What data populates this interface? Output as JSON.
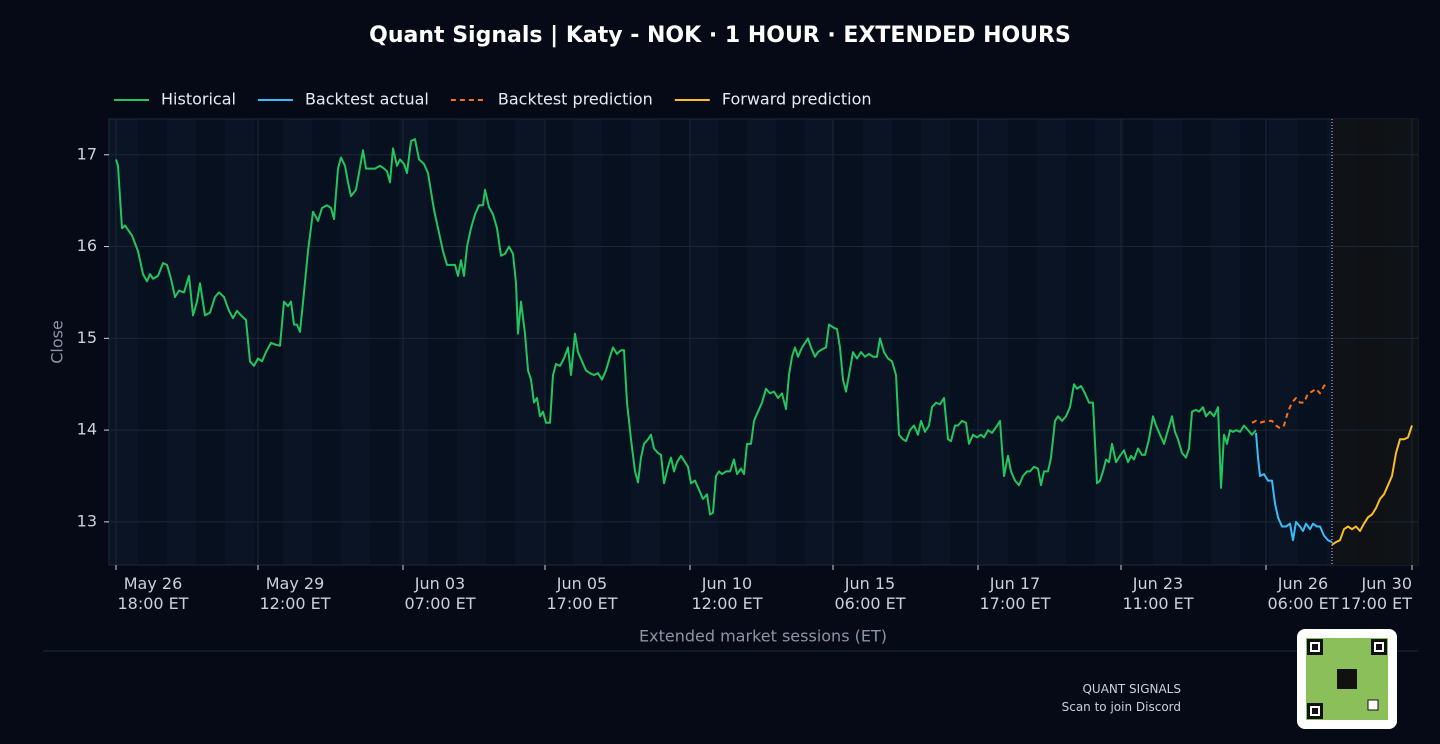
{
  "chart_data": {
    "type": "line",
    "title": "Quant Signals | Katy - NOK  ·  1 HOUR  ·  EXTENDED HOURS",
    "xlabel": "Extended market sessions (ET)",
    "ylabel": "Close",
    "xlim": [
      -7,
      1302
    ],
    "ylim": [
      12.53,
      17.39
    ],
    "yticks": [
      13,
      14,
      15,
      16,
      17
    ],
    "xticks": [
      {
        "value": 0,
        "label": "May 26\n18:00 ET"
      },
      {
        "value": 142,
        "label": "May 29\n12:00 ET"
      },
      {
        "value": 287,
        "label": "Jun 03\n07:00 ET"
      },
      {
        "value": 429,
        "label": "Jun 05\n17:00 ET"
      },
      {
        "value": 574,
        "label": "Jun 10\n12:00 ET"
      },
      {
        "value": 717,
        "label": "Jun 15\n06:00 ET"
      },
      {
        "value": 862,
        "label": "Jun 17\n17:00 ET"
      },
      {
        "value": 1005,
        "label": "Jun 23\n11:00 ET"
      },
      {
        "value": 1150,
        "label": "Jun 26\n06:00 ET"
      },
      {
        "value": 1296,
        "label": "Jun 30\n17:00 ET"
      }
    ],
    "grid": true,
    "legend": "top-left",
    "series": [
      {
        "name": "Historical",
        "color": "#22c55e",
        "dashed": false,
        "x": [
          0,
          2,
          6,
          9,
          16,
          22,
          27,
          31,
          34,
          37,
          42,
          47,
          51,
          55,
          59,
          63,
          68,
          73,
          77,
          81,
          84,
          89,
          94,
          99,
          103,
          108,
          113,
          117,
          121,
          125,
          130,
          134,
          138,
          142,
          146,
          150,
          155,
          160,
          164,
          168,
          172,
          175,
          178,
          181,
          184,
          188,
          192,
          197,
          202,
          206,
          211,
          215,
          218,
          222,
          225,
          229,
          232,
          235,
          240,
          243,
          247,
          250,
          255,
          259,
          264,
          268,
          271,
          274,
          277,
          281,
          284,
          288,
          291,
          295,
          299,
          303,
          308,
          312,
          315,
          318,
          322,
          327,
          331,
          335,
          339,
          342,
          345,
          348,
          351,
          355,
          359,
          363,
          367,
          369,
          373,
          377,
          381,
          385,
          389,
          393,
          397,
          400,
          402,
          405,
          409,
          412,
          415,
          418,
          421,
          424,
          427,
          430,
          434,
          437,
          440,
          444,
          448,
          452,
          455,
          459,
          462,
          466,
          470,
          474,
          478,
          482,
          486,
          490,
          494,
          497,
          501,
          505,
          508,
          511,
          515,
          519,
          522,
          525,
          528,
          532,
          535,
          538,
          542,
          545,
          548,
          552,
          555,
          558,
          561,
          565,
          569,
          572,
          575,
          579,
          583,
          587,
          591,
          594,
          597,
          600,
          603,
          606,
          610,
          614,
          618,
          621,
          625,
          628,
          631,
          635,
          638,
          642,
          646,
          650,
          654,
          658,
          662,
          666,
          670,
          673,
          676,
          679,
          682,
          686,
          689,
          692,
          695,
          699,
          702,
          706,
          710,
          713,
          717,
          721,
          724,
          727,
          730,
          733,
          737,
          741,
          745,
          749,
          753,
          757,
          761,
          764,
          768,
          772,
          776,
          780,
          783,
          787,
          790,
          794,
          798,
          802,
          805,
          809,
          813,
          816,
          820,
          824,
          828,
          832,
          835,
          839,
          842,
          846,
          850,
          853,
          857,
          861,
          865,
          868,
          872,
          876,
          880,
          884,
          888,
          892,
          895,
          899,
          903,
          907,
          911,
          914,
          918,
          922,
          925,
          928,
          932,
          935,
          939,
          942,
          946,
          950,
          954,
          958,
          961,
          965,
          969,
          973,
          977,
          981,
          984,
          987,
          990,
          993,
          996,
          1000,
          1004,
          1008,
          1012,
          1015,
          1018,
          1022,
          1026,
          1029,
          1033,
          1037,
          1040,
          1044,
          1048,
          1052,
          1056,
          1059,
          1062,
          1066,
          1070,
          1073,
          1076,
          1080,
          1083,
          1087,
          1090,
          1094,
          1098,
          1102,
          1105,
          1108,
          1111,
          1114,
          1117,
          1120,
          1124,
          1128,
          1132,
          1136,
          1140
        ],
        "values": [
          16.95,
          16.88,
          16.2,
          16.23,
          16.12,
          15.95,
          15.7,
          15.62,
          15.7,
          15.65,
          15.68,
          15.82,
          15.8,
          15.65,
          15.45,
          15.52,
          15.5,
          15.68,
          15.25,
          15.4,
          15.6,
          15.25,
          15.28,
          15.45,
          15.5,
          15.45,
          15.3,
          15.22,
          15.3,
          15.25,
          15.2,
          14.75,
          14.7,
          14.78,
          14.75,
          14.85,
          14.95,
          14.93,
          14.92,
          15.4,
          15.35,
          15.4,
          15.15,
          15.15,
          15.07,
          15.5,
          15.95,
          16.38,
          16.28,
          16.42,
          16.45,
          16.42,
          16.3,
          16.85,
          16.97,
          16.88,
          16.7,
          16.55,
          16.62,
          16.8,
          17.05,
          16.85,
          16.85,
          16.85,
          16.88,
          16.85,
          16.82,
          16.7,
          17.07,
          16.88,
          16.95,
          16.9,
          16.8,
          17.15,
          17.17,
          16.95,
          16.9,
          16.8,
          16.6,
          16.4,
          16.2,
          15.95,
          15.8,
          15.8,
          15.8,
          15.68,
          15.85,
          15.68,
          16.0,
          16.2,
          16.35,
          16.45,
          16.45,
          16.62,
          16.43,
          16.35,
          16.2,
          15.9,
          15.92,
          16.0,
          15.92,
          15.6,
          15.05,
          15.4,
          15.05,
          14.65,
          14.55,
          14.3,
          14.35,
          14.15,
          14.2,
          14.08,
          14.08,
          14.6,
          14.72,
          14.7,
          14.78,
          14.9,
          14.6,
          15.05,
          14.85,
          14.75,
          14.65,
          14.62,
          14.6,
          14.62,
          14.55,
          14.65,
          14.8,
          14.9,
          14.83,
          14.87,
          14.87,
          14.3,
          13.9,
          13.55,
          13.43,
          13.7,
          13.85,
          13.9,
          13.95,
          13.8,
          13.75,
          13.73,
          13.42,
          13.6,
          13.7,
          13.55,
          13.65,
          13.72,
          13.65,
          13.6,
          13.42,
          13.45,
          13.35,
          13.25,
          13.3,
          13.08,
          13.1,
          13.5,
          13.55,
          13.52,
          13.55,
          13.55,
          13.68,
          13.52,
          13.58,
          13.52,
          13.85,
          13.85,
          14.1,
          14.2,
          14.3,
          14.45,
          14.4,
          14.42,
          14.35,
          14.4,
          14.23,
          14.6,
          14.8,
          14.9,
          14.8,
          14.9,
          14.95,
          15.0,
          14.9,
          14.8,
          14.85,
          14.88,
          14.9,
          15.15,
          15.12,
          15.1,
          14.9,
          14.55,
          14.42,
          14.6,
          14.85,
          14.78,
          14.85,
          14.8,
          14.83,
          14.8,
          14.8,
          15.0,
          14.85,
          14.78,
          14.75,
          14.6,
          13.95,
          13.9,
          13.88,
          14.0,
          14.05,
          13.95,
          14.1,
          13.98,
          14.05,
          14.25,
          14.3,
          14.28,
          14.35,
          13.9,
          13.88,
          14.05,
          14.05,
          14.1,
          14.08,
          13.85,
          13.95,
          13.92,
          13.95,
          13.92,
          14.0,
          13.97,
          14.03,
          14.1,
          13.5,
          13.72,
          13.55,
          13.45,
          13.4,
          13.5,
          13.55,
          13.55,
          13.6,
          13.58,
          13.4,
          13.55,
          13.55,
          13.7,
          14.1,
          14.15,
          14.1,
          14.15,
          14.25,
          14.5,
          14.45,
          14.48,
          14.4,
          14.3,
          14.3,
          13.42,
          13.45,
          13.55,
          13.68,
          13.65,
          13.85,
          13.65,
          13.72,
          13.78,
          13.65,
          13.72,
          13.68,
          13.8,
          13.73,
          13.73,
          13.9,
          14.15,
          14.05,
          13.95,
          13.85,
          14.0,
          14.15,
          13.98,
          13.9,
          13.75,
          13.7,
          13.8,
          14.2,
          14.22,
          14.2,
          14.25,
          14.15,
          14.2,
          14.15,
          14.25,
          13.37,
          13.95,
          13.85,
          14.0,
          13.98,
          14.0,
          13.98,
          14.05,
          14.0,
          13.95,
          14.0
        ]
      },
      {
        "name": "Backtest actual",
        "color": "#38bdf8",
        "dashed": false,
        "x": [
          1140,
          1142,
          1144,
          1148,
          1152,
          1156,
          1159,
          1162,
          1166,
          1170,
          1174,
          1177,
          1180,
          1184,
          1187,
          1190,
          1194,
          1197,
          1201,
          1204,
          1208,
          1212,
          1216
        ],
        "values": [
          13.97,
          13.7,
          13.5,
          13.52,
          13.45,
          13.45,
          13.2,
          13.05,
          12.95,
          12.95,
          12.98,
          12.8,
          13.0,
          12.95,
          12.9,
          12.98,
          12.92,
          12.98,
          12.95,
          12.95,
          12.85,
          12.8,
          12.78
        ]
      },
      {
        "name": "Backtest prediction",
        "color": "#f97316",
        "dashed": true,
        "x": [
          1136,
          1140,
          1144,
          1150,
          1156,
          1160,
          1164,
          1168,
          1172,
          1176,
          1180,
          1184,
          1188,
          1192,
          1196,
          1200,
          1204,
          1208,
          1212
        ],
        "values": [
          14.08,
          14.1,
          14.08,
          14.1,
          14.1,
          14.05,
          14.02,
          14.05,
          14.2,
          14.3,
          14.35,
          14.3,
          14.3,
          14.4,
          14.42,
          14.45,
          14.4,
          14.48,
          14.52
        ]
      },
      {
        "name": "Forward prediction",
        "color": "#fbbf24",
        "dashed": false,
        "x": [
          1216,
          1220,
          1224,
          1228,
          1232,
          1236,
          1240,
          1244,
          1248,
          1252,
          1256,
          1260,
          1264,
          1268,
          1272,
          1276,
          1280,
          1284,
          1288,
          1292,
          1296
        ],
        "values": [
          12.75,
          12.78,
          12.8,
          12.92,
          12.95,
          12.92,
          12.95,
          12.9,
          12.98,
          13.05,
          13.08,
          13.15,
          13.25,
          13.3,
          13.4,
          13.5,
          13.75,
          13.9,
          13.9,
          13.92,
          14.05
        ]
      }
    ]
  },
  "footer": {
    "brand": "QUANT SIGNALS",
    "cta": "Scan to join Discord"
  }
}
